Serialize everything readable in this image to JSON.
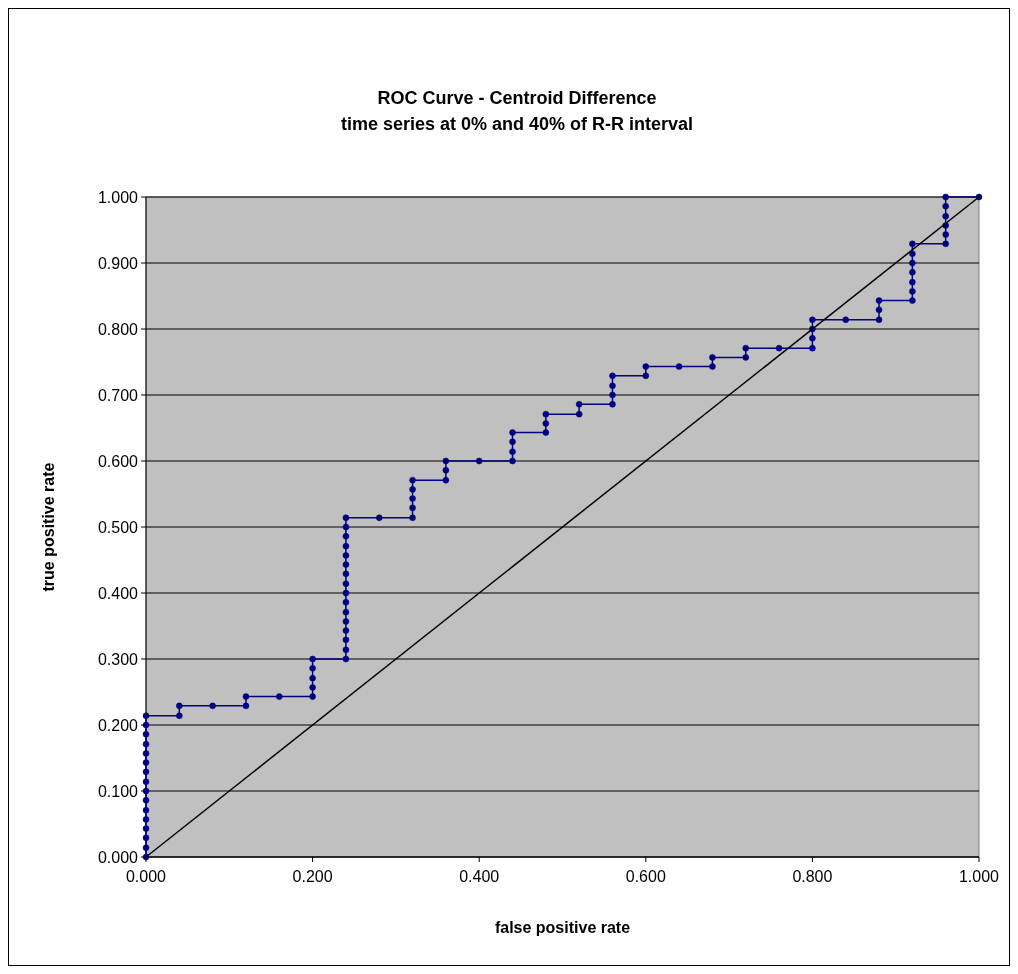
{
  "chart_data": {
    "type": "line",
    "title": "ROC Curve - Centroid Difference",
    "subtitle": "time series at 0% and 40% of R-R interval",
    "xlabel": "false positive rate",
    "ylabel": "true positive rate",
    "xlim": [
      0,
      1
    ],
    "ylim": [
      0,
      1
    ],
    "xticks": [
      {
        "value": 0,
        "label": "0.000"
      },
      {
        "value": 0.2,
        "label": "0.200"
      },
      {
        "value": 0.4,
        "label": "0.400"
      },
      {
        "value": 0.6,
        "label": "0.600"
      },
      {
        "value": 0.8,
        "label": "0.800"
      },
      {
        "value": 1,
        "label": "1.000"
      }
    ],
    "yticks": [
      {
        "value": 0,
        "label": "0.000"
      },
      {
        "value": 0.1,
        "label": "0.100"
      },
      {
        "value": 0.2,
        "label": "0.200"
      },
      {
        "value": 0.3,
        "label": "0.300"
      },
      {
        "value": 0.4,
        "label": "0.400"
      },
      {
        "value": 0.5,
        "label": "0.500"
      },
      {
        "value": 0.6,
        "label": "0.600"
      },
      {
        "value": 0.7,
        "label": "0.700"
      },
      {
        "value": 0.8,
        "label": "0.800"
      },
      {
        "value": 0.9,
        "label": "0.900"
      },
      {
        "value": 1,
        "label": "1.000"
      }
    ],
    "grid": "y",
    "series": [
      {
        "color": "#000080",
        "marker": "circle",
        "x": [
          0,
          0,
          0,
          0,
          0,
          0,
          0,
          0,
          0,
          0,
          0,
          0,
          0,
          0,
          0,
          0,
          0.04,
          0.04,
          0.08,
          0.12,
          0.12,
          0.16,
          0.2,
          0.2,
          0.2,
          0.2,
          0.2,
          0.24,
          0.24,
          0.24,
          0.24,
          0.24,
          0.24,
          0.24,
          0.24,
          0.24,
          0.24,
          0.24,
          0.24,
          0.24,
          0.24,
          0.24,
          0.24,
          0.28,
          0.32,
          0.32,
          0.32,
          0.32,
          0.32,
          0.36,
          0.36,
          0.36,
          0.4,
          0.44,
          0.44,
          0.44,
          0.44,
          0.48,
          0.48,
          0.48,
          0.52,
          0.52,
          0.56,
          0.56,
          0.56,
          0.56,
          0.6,
          0.6,
          0.64,
          0.68,
          0.68,
          0.72,
          0.72,
          0.76,
          0.8,
          0.8,
          0.8,
          0.8,
          0.84,
          0.88,
          0.88,
          0.88,
          0.92,
          0.92,
          0.92,
          0.92,
          0.92,
          0.92,
          0.92,
          0.96,
          0.96,
          0.96,
          0.96,
          0.96,
          0.96,
          1
        ],
        "values": [
          0,
          0.014,
          0.029,
          0.043,
          0.057,
          0.071,
          0.086,
          0.1,
          0.114,
          0.129,
          0.143,
          0.157,
          0.171,
          0.186,
          0.2,
          0.214,
          0.214,
          0.229,
          0.229,
          0.229,
          0.243,
          0.243,
          0.243,
          0.257,
          0.271,
          0.286,
          0.3,
          0.3,
          0.314,
          0.329,
          0.343,
          0.357,
          0.371,
          0.386,
          0.4,
          0.414,
          0.429,
          0.443,
          0.457,
          0.471,
          0.486,
          0.5,
          0.514,
          0.514,
          0.514,
          0.529,
          0.543,
          0.557,
          0.571,
          0.571,
          0.586,
          0.6,
          0.6,
          0.6,
          0.614,
          0.629,
          0.643,
          0.643,
          0.657,
          0.671,
          0.671,
          0.686,
          0.686,
          0.7,
          0.714,
          0.729,
          0.729,
          0.743,
          0.743,
          0.743,
          0.757,
          0.757,
          0.771,
          0.771,
          0.771,
          0.786,
          0.8,
          0.814,
          0.814,
          0.814,
          0.829,
          0.843,
          0.843,
          0.857,
          0.871,
          0.886,
          0.9,
          0.914,
          0.929,
          0.929,
          0.943,
          0.957,
          0.971,
          0.986,
          1,
          1
        ]
      },
      {
        "color": "#000000",
        "marker": "none",
        "x": [
          0,
          1
        ],
        "values": [
          0,
          1
        ]
      }
    ]
  }
}
